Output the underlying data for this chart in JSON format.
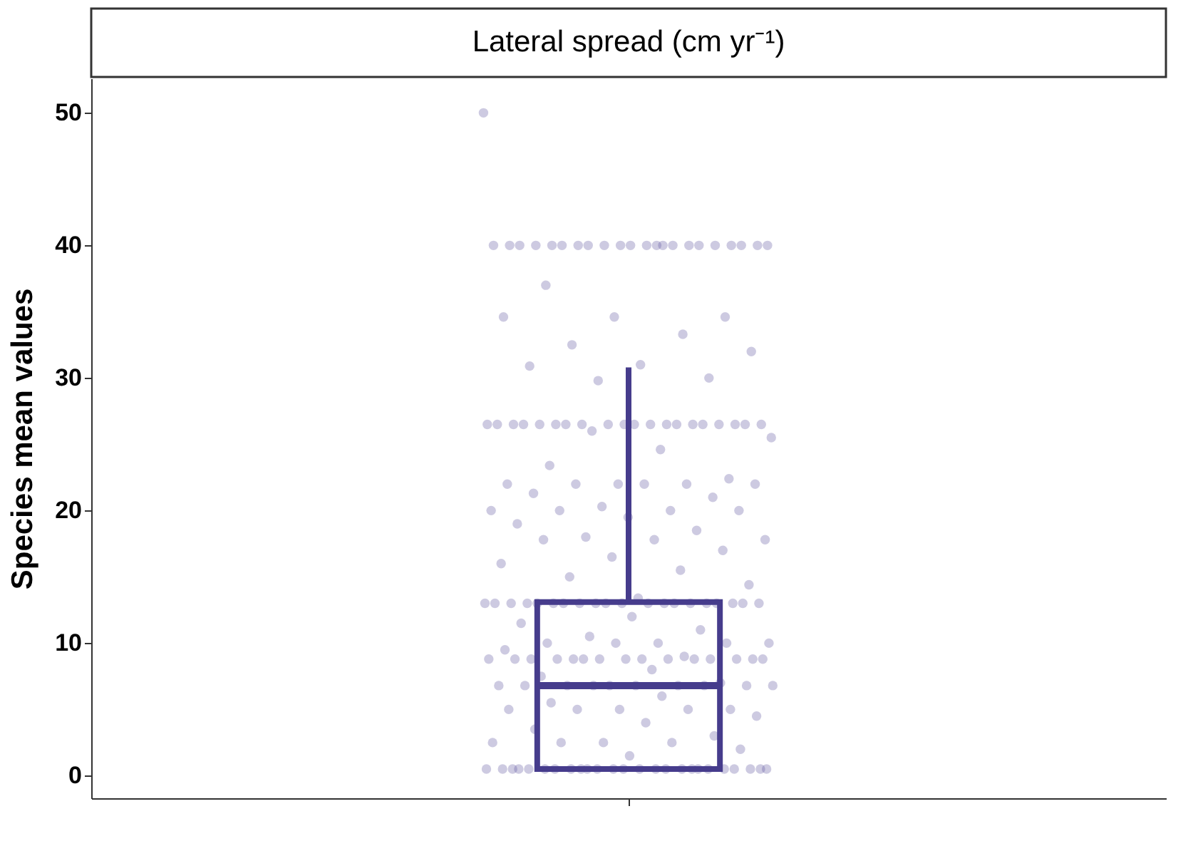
{
  "chart_data": {
    "type": "box",
    "title": "Lateral spread (cm yr⁻¹)",
    "ylabel": "Species mean values",
    "categories": [
      null
    ],
    "ylim": [
      -1.7,
      52.6
    ],
    "yticks": [
      0,
      10,
      20,
      30,
      40,
      50
    ],
    "grid": false,
    "boxes": [
      {
        "low": 0.5,
        "q1": 0.5,
        "median": 6.8,
        "q3": 13.1,
        "high": 30.8
      }
    ],
    "color": "#463c8c",
    "series": [
      {
        "type": "scatter",
        "color": "#5a4e9a",
        "marker": "circle",
        "x": [
          null,
          null,
          null,
          null,
          null,
          null,
          null,
          null,
          null,
          null,
          null,
          null,
          null,
          null,
          null,
          null,
          null,
          null,
          null,
          null,
          null,
          null,
          null,
          null,
          null,
          null,
          null,
          null,
          null,
          null,
          null,
          null,
          null,
          null,
          null,
          null,
          null,
          null,
          null,
          null,
          null,
          null,
          null,
          null,
          null,
          null,
          null,
          null,
          null,
          null,
          null,
          null,
          null,
          null,
          null,
          null,
          null,
          null,
          null,
          null,
          null,
          null,
          null,
          null,
          null,
          null,
          null,
          null,
          null,
          null,
          null,
          null,
          null,
          null,
          null,
          null,
          null,
          null,
          null,
          null,
          null,
          null,
          null,
          null,
          null,
          null,
          null,
          null,
          null,
          null,
          null,
          null,
          null,
          null,
          null,
          null,
          null,
          null,
          null,
          null,
          null,
          null,
          null,
          null,
          null,
          null,
          null,
          null,
          null,
          null,
          null,
          null,
          null,
          null,
          null,
          null,
          null,
          null,
          null,
          null,
          null,
          null,
          null,
          null,
          null,
          null,
          null,
          null,
          null,
          null,
          null,
          null,
          null,
          null,
          null,
          null,
          null,
          null,
          null,
          null,
          null,
          null,
          null,
          null,
          null,
          null,
          null,
          null,
          null,
          null,
          null,
          null,
          null,
          null,
          null,
          null,
          null,
          null,
          null,
          null,
          null,
          null,
          null,
          null,
          null,
          null,
          null,
          null,
          null,
          null,
          null,
          null,
          null,
          null,
          null,
          null,
          null,
          null,
          null,
          null,
          null,
          null,
          null,
          null,
          null,
          null,
          null
        ],
        "values": [
          50,
          40,
          40,
          40,
          40,
          40,
          40,
          40,
          40,
          40,
          40,
          40,
          40,
          40,
          40,
          40,
          40,
          40,
          40,
          40,
          40,
          40,
          40,
          37,
          34.6,
          34.6,
          34.6,
          33.3,
          32.5,
          32,
          31,
          30.9,
          30,
          29.8,
          26.5,
          26.5,
          26.5,
          26.5,
          26.5,
          26.5,
          26.5,
          26.5,
          26.5,
          26.5,
          26.5,
          26.5,
          26.5,
          26.5,
          26.5,
          26.5,
          26.5,
          26.5,
          26.5,
          26.5,
          26,
          25.5,
          24.6,
          23.4,
          22.4,
          22,
          22,
          22,
          22,
          22,
          22,
          21.3,
          21,
          20.3,
          20,
          20,
          20,
          20,
          19.5,
          19,
          18.5,
          18,
          17.8,
          17.8,
          17.8,
          17,
          16.5,
          16,
          15.5,
          15,
          14.4,
          13.4,
          13,
          13,
          13,
          13,
          13,
          13,
          13,
          13,
          13,
          13,
          13,
          13,
          13,
          13,
          13,
          13,
          13,
          13,
          13,
          13,
          12,
          11.5,
          11,
          10.5,
          10,
          10,
          10,
          10,
          10,
          9.5,
          9,
          8.8,
          8.8,
          8.8,
          8.8,
          8.8,
          8.8,
          8.8,
          8.8,
          8.8,
          8.8,
          8.8,
          8.8,
          8.8,
          8.8,
          8.8,
          8,
          7.5,
          7,
          6.8,
          6.8,
          6.8,
          6.8,
          6.8,
          6.8,
          6.8,
          6.8,
          6.8,
          6.8,
          6,
          5.5,
          5,
          5,
          5,
          5,
          5,
          4.5,
          4,
          3.5,
          3,
          2.5,
          2.5,
          2.5,
          2.5,
          2,
          1.5,
          0.5,
          0.5,
          0.5,
          0.5,
          0.5,
          0.5,
          0.5,
          0.5,
          0.5,
          0.5,
          0.5,
          0.5,
          0.5,
          0.5,
          0.5,
          0.5,
          0.5,
          0.5,
          0.5,
          0.5,
          0.5,
          0.5,
          0.5,
          0.5,
          0.5
        ]
      }
    ]
  }
}
